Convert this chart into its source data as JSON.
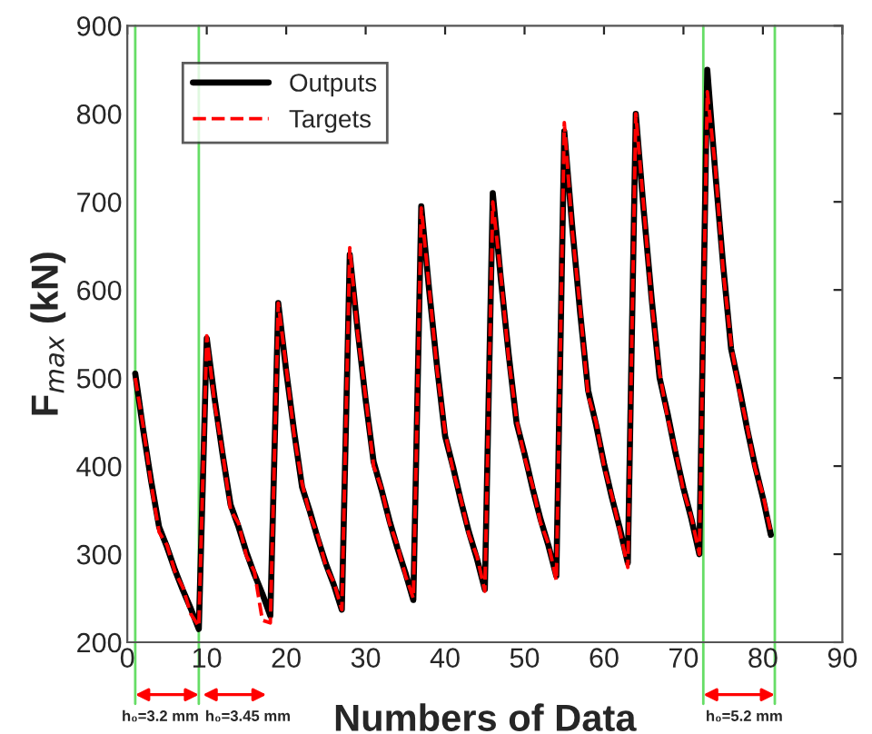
{
  "chart_data": {
    "type": "line",
    "xlabel": "Numbers of Data",
    "ylabel": "F$_{max}$ (kN)",
    "x": [
      1,
      2,
      3,
      4,
      5,
      6,
      7,
      8,
      9,
      10,
      11,
      12,
      13,
      14,
      15,
      16,
      17,
      18,
      19,
      20,
      21,
      22,
      23,
      24,
      25,
      26,
      27,
      28,
      29,
      30,
      31,
      32,
      33,
      34,
      35,
      36,
      37,
      38,
      39,
      40,
      41,
      42,
      43,
      44,
      45,
      46,
      47,
      48,
      49,
      50,
      51,
      52,
      53,
      54,
      55,
      56,
      57,
      58,
      59,
      60,
      61,
      62,
      63,
      64,
      65,
      66,
      67,
      68,
      69,
      70,
      71,
      72,
      73,
      74,
      75,
      76,
      77,
      78,
      79,
      80,
      81
    ],
    "series": [
      {
        "name": "Outputs",
        "color": "#000000",
        "line_style": "solid",
        "values": [
          505,
          441,
          383,
          331,
          308,
          282,
          259,
          238,
          215,
          545,
          476,
          413,
          356,
          331,
          302,
          277,
          255,
          230,
          585,
          508,
          439,
          376,
          348,
          317,
          289,
          265,
          237,
          640,
          554,
          475,
          405,
          373,
          338,
          307,
          279,
          248,
          695,
          599,
          512,
          434,
          399,
          360,
          325,
          295,
          260,
          710,
          614,
          527,
          449,
          414,
          375,
          340,
          310,
          275,
          780,
          672,
          574,
          486,
          447,
          403,
          364,
          329,
          290,
          800,
          690,
          590,
          500,
          460,
          415,
          375,
          340,
          300,
          850,
          734,
          628,
          533,
          491,
          443,
          401,
          364,
          322
        ]
      },
      {
        "name": "Targets",
        "color": "#ff0000",
        "line_style": "dashed",
        "values": [
          500,
          445,
          380,
          325,
          310,
          280,
          262,
          232,
          218,
          548,
          470,
          415,
          350,
          335,
          298,
          280,
          225,
          222,
          585,
          512,
          435,
          380,
          344,
          320,
          286,
          268,
          237,
          648,
          550,
          478,
          400,
          375,
          335,
          310,
          276,
          250,
          693,
          602,
          508,
          438,
          395,
          362,
          322,
          298,
          258,
          700,
          618,
          522,
          452,
          410,
          378,
          336,
          312,
          270,
          790,
          668,
          578,
          480,
          450,
          400,
          366,
          326,
          285,
          800,
          694,
          586,
          505,
          455,
          418,
          372,
          342,
          300,
          825,
          740,
          622,
          538,
          486,
          446,
          398,
          368,
          325
        ]
      }
    ],
    "xlim": [
      0,
      90
    ],
    "ylim": [
      200,
      900
    ],
    "xticks": [
      0,
      10,
      20,
      30,
      40,
      50,
      60,
      70,
      80,
      90
    ],
    "yticks": [
      200,
      300,
      400,
      500,
      600,
      700,
      800,
      900
    ],
    "ref_lines": [
      {
        "axis": "x",
        "value": 1,
        "color": "#66dd66"
      },
      {
        "axis": "x",
        "value": 9,
        "color": "#66dd66"
      },
      {
        "axis": "x",
        "value": 72.5,
        "color": "#66dd66"
      },
      {
        "axis": "x",
        "value": 81.5,
        "color": "#66dd66"
      }
    ],
    "annotations": [
      "h₀=3.2 mm",
      "h₀=3.45 mm",
      "h₀=5.2 mm"
    ],
    "legend": "top left",
    "grid": false
  }
}
